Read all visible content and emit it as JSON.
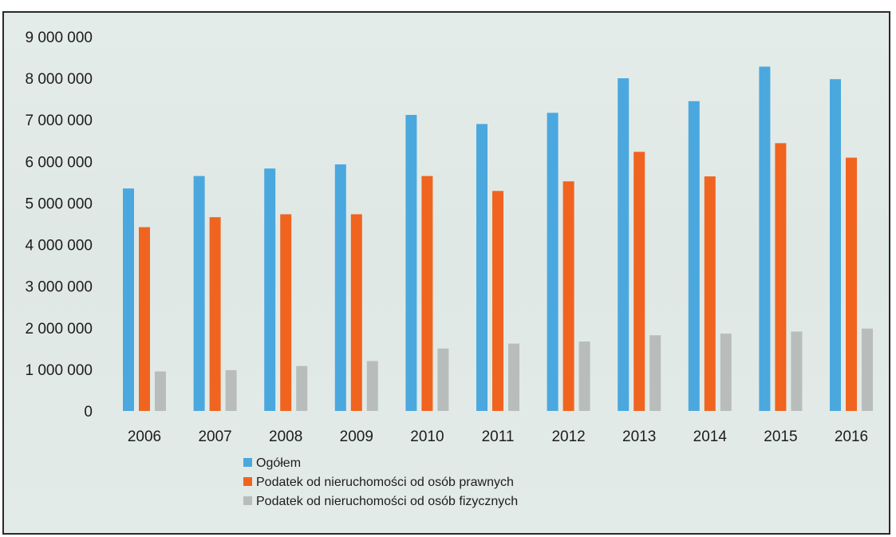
{
  "chart_data": {
    "type": "bar",
    "categories": [
      "2006",
      "2007",
      "2008",
      "2009",
      "2010",
      "2011",
      "2012",
      "2013",
      "2014",
      "2015",
      "2016"
    ],
    "series": [
      {
        "name": "Ogółem",
        "color": "#4aa8de",
        "values": [
          5350000,
          5650000,
          5830000,
          5930000,
          7120000,
          6900000,
          7170000,
          8000000,
          7450000,
          8280000,
          7980000
        ]
      },
      {
        "name": "Podatek od nieruchomości od osób prawnych",
        "color": "#f0641f",
        "values": [
          4420000,
          4660000,
          4730000,
          4730000,
          5650000,
          5290000,
          5520000,
          6230000,
          5640000,
          6440000,
          6090000
        ]
      },
      {
        "name": "Podatek od nieruchomości od osób fizycznych",
        "color": "#b8bdbb",
        "values": [
          950000,
          980000,
          1080000,
          1200000,
          1500000,
          1620000,
          1670000,
          1820000,
          1860000,
          1910000,
          1980000
        ]
      }
    ],
    "y_ticks": [
      "0",
      "1 000 000",
      "2 000 000",
      "3 000 000",
      "4 000 000",
      "5 000 000",
      "6 000 000",
      "7 000 000",
      "8 000 000",
      "9 000 000"
    ],
    "ylim": [
      0,
      9000000
    ],
    "grid": false,
    "legend": "bottom-center",
    "title": "",
    "xlabel": "",
    "ylabel": ""
  }
}
